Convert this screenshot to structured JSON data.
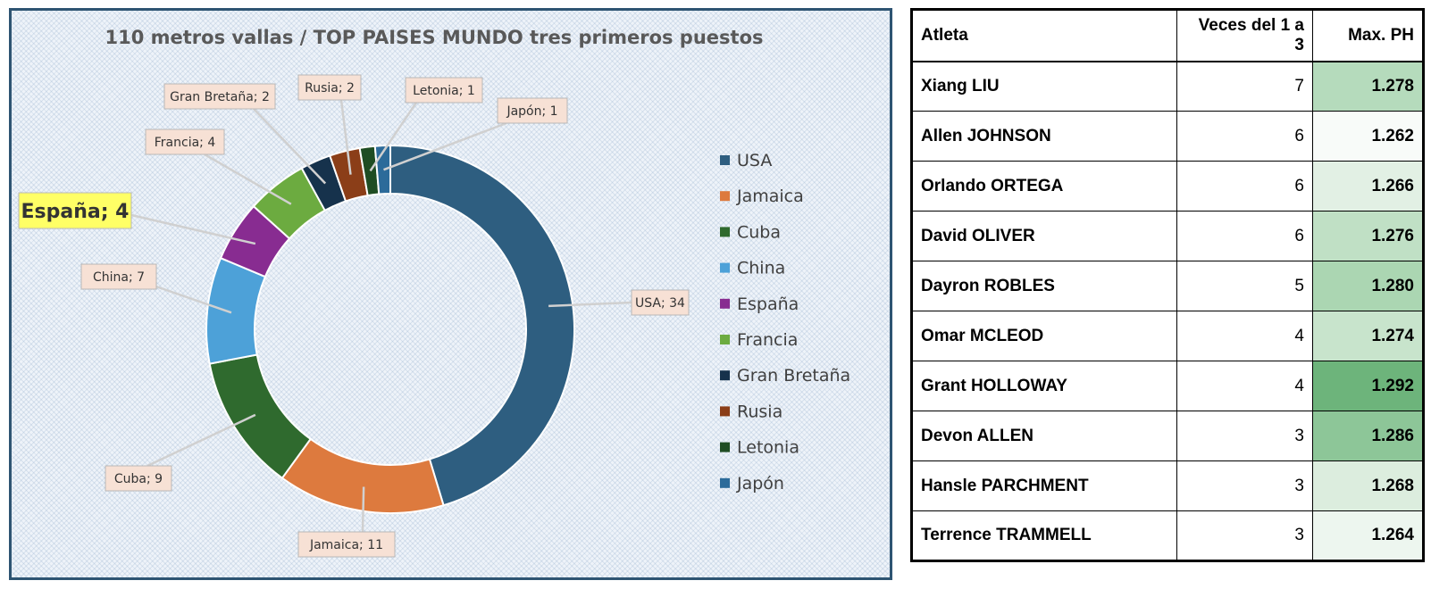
{
  "chart_data": {
    "type": "pie",
    "title": "110 metros vallas / TOP PAISES MUNDO tres primeros puestos",
    "categories": [
      "USA",
      "Jamaica",
      "Cuba",
      "China",
      "España",
      "Francia",
      "Gran Bretaña",
      "Rusia",
      "Letonia",
      "Japón"
    ],
    "values": [
      34,
      11,
      9,
      7,
      4,
      4,
      2,
      2,
      1,
      1
    ],
    "colors": [
      "#2e5e80",
      "#dd7a3e",
      "#2f6a2e",
      "#4da1d8",
      "#882c91",
      "#6cab40",
      "#16324c",
      "#8b3e18",
      "#1f4d23",
      "#2c6b9a"
    ],
    "data_labels": [
      "USA; 34",
      "Jamaica; 11",
      "Cuba; 9",
      "China; 7",
      "España; 4",
      "Francia; 4",
      "Gran Bretaña; 2",
      "Rusia; 2",
      "Letonia; 1",
      "Japón; 1"
    ],
    "highlighted_label": "España; 4",
    "highlight_color": "#ffff66",
    "label_box_color": "#f7e1d5",
    "legend_position": "right",
    "donut": true
  },
  "table": {
    "headers": [
      "Atleta",
      "Veces del 1 a 3",
      "Max. PH"
    ],
    "rows": [
      {
        "name": "Xiang LIU",
        "times": "7",
        "max": "1.278",
        "color": "#b5dbbc"
      },
      {
        "name": "Allen JOHNSON",
        "times": "6",
        "max": "1.262",
        "color": "#f8fbf9"
      },
      {
        "name": "Orlando ORTEGA",
        "times": "6",
        "max": "1.266",
        "color": "#e2f0e4"
      },
      {
        "name": "David OLIVER",
        "times": "6",
        "max": "1.276",
        "color": "#c0e0c5"
      },
      {
        "name": "Dayron ROBLES",
        "times": "5",
        "max": "1.280",
        "color": "#abd6b2"
      },
      {
        "name": "Omar MCLEOD",
        "times": "4",
        "max": "1.274",
        "color": "#c8e4cc"
      },
      {
        "name": "Grant HOLLOWAY",
        "times": "4",
        "max": "1.292",
        "color": "#6db47b"
      },
      {
        "name": "Devon ALLEN",
        "times": "3",
        "max": "1.286",
        "color": "#8dc698"
      },
      {
        "name": "Hansle PARCHMENT",
        "times": "3",
        "max": "1.268",
        "color": "#dcedde"
      },
      {
        "name": "Terrence TRAMMELL",
        "times": "3",
        "max": "1.264",
        "color": "#edf6ef"
      }
    ]
  }
}
